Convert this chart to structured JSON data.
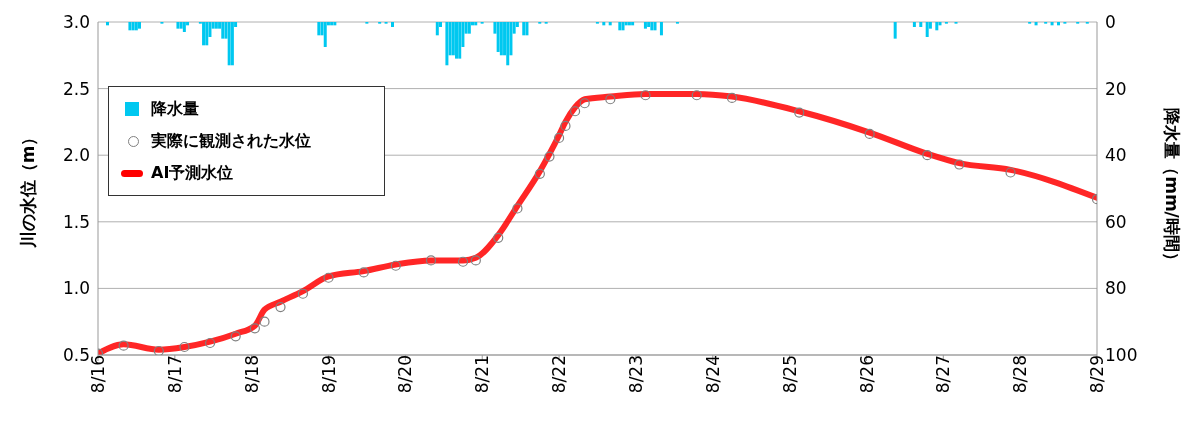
{
  "chart_data": {
    "type": "line",
    "ylabel": "川の水位（m）",
    "y2label": "降水量（mm/時間）",
    "xlim": [
      "--08-16",
      "--08-29"
    ],
    "xticks": [
      {
        "value": "--08-16",
        "label": "8/16"
      },
      {
        "value": "--08-17",
        "label": "8/17"
      },
      {
        "value": "--08-18",
        "label": "8/18"
      },
      {
        "value": "--08-19",
        "label": "8/19"
      },
      {
        "value": "--08-20",
        "label": "8/20"
      },
      {
        "value": "--08-21",
        "label": "8/21"
      },
      {
        "value": "--08-22",
        "label": "8/22"
      },
      {
        "value": "--08-23",
        "label": "8/23"
      },
      {
        "value": "--08-24",
        "label": "8/24"
      },
      {
        "value": "--08-25",
        "label": "8/25"
      },
      {
        "value": "--08-26",
        "label": "8/26"
      },
      {
        "value": "--08-27",
        "label": "8/27"
      },
      {
        "value": "--08-28",
        "label": "8/28"
      },
      {
        "value": "--08-29",
        "label": "8/29"
      }
    ],
    "ylim": [
      0.5,
      3.0
    ],
    "yticks": [
      {
        "value": 0.5,
        "label": "0.5"
      },
      {
        "value": 1.0,
        "label": "1.0"
      },
      {
        "value": 1.5,
        "label": "1.5"
      },
      {
        "value": 2.0,
        "label": "2.0"
      },
      {
        "value": 2.5,
        "label": "2.5"
      },
      {
        "value": 3.0,
        "label": "3.0"
      }
    ],
    "y2lim": [
      100,
      0
    ],
    "y2ticks": [
      0,
      20,
      40,
      60,
      80,
      100
    ],
    "grid": "y",
    "legend": "top left",
    "x": [
      "--08-16T00:00",
      "--08-16T08:00",
      "--08-16T19:00",
      "--08-17T03:00",
      "--08-17T11:00",
      "--08-17T19:00",
      "--08-18T01:00",
      "--08-18T04:00",
      "--08-18T09:00",
      "--08-18T16:00",
      "--08-19T00:00",
      "--08-19T11:00",
      "--08-19T21:00",
      "--08-20T08:00",
      "--08-20T18:00",
      "--08-20T22:00",
      "--08-21T05:00",
      "--08-21T11:00",
      "--08-21T18:00",
      "--08-21T21:00",
      "--08-22T00:00",
      "--08-22T02:00",
      "--08-22T05:00",
      "--08-22T08:00",
      "--08-22T16:00",
      "--08-23T03:00",
      "--08-23T19:00",
      "--08-24T06:00",
      "--08-25T03:00",
      "--08-26T01:00",
      "--08-26T19:00",
      "--08-27T05:00",
      "--08-27T21:00",
      "--08-29T00:00"
    ],
    "series": [
      {
        "name": "降水量",
        "type": "bar",
        "axis": "y2",
        "color": "#00c8f0",
        "x": [
          "--08-16T03:00",
          "--08-16T10:00",
          "--08-16T11:00",
          "--08-16T12:00",
          "--08-16T13:00",
          "--08-16T20:00",
          "--08-17T01:00",
          "--08-17T02:00",
          "--08-17T03:00",
          "--08-17T04:00",
          "--08-17T08:00",
          "--08-17T09:00",
          "--08-17T10:00",
          "--08-17T11:00",
          "--08-17T12:00",
          "--08-17T13:00",
          "--08-17T14:00",
          "--08-17T15:00",
          "--08-17T16:00",
          "--08-17T17:00",
          "--08-17T18:00",
          "--08-17T19:00",
          "--08-18T21:00",
          "--08-18T22:00",
          "--08-18T23:00",
          "--08-19T00:00",
          "--08-19T01:00",
          "--08-19T02:00",
          "--08-19T12:00",
          "--08-19T16:00",
          "--08-19T18:00",
          "--08-19T20:00",
          "--08-20T10:00",
          "--08-20T11:00",
          "--08-20T13:00",
          "--08-20T14:00",
          "--08-20T15:00",
          "--08-20T16:00",
          "--08-20T17:00",
          "--08-20T18:00",
          "--08-20T19:00",
          "--08-20T20:00",
          "--08-20T21:00",
          "--08-20T22:00",
          "--08-21T00:00",
          "--08-21T04:00",
          "--08-21T05:00",
          "--08-21T06:00",
          "--08-21T07:00",
          "--08-21T08:00",
          "--08-21T09:00",
          "--08-21T10:00",
          "--08-21T11:00",
          "--08-21T13:00",
          "--08-21T14:00",
          "--08-21T18:00",
          "--08-21T20:00",
          "--08-22T12:00",
          "--08-22T14:00",
          "--08-22T16:00",
          "--08-22T19:00",
          "--08-22T20:00",
          "--08-22T21:00",
          "--08-22T22:00",
          "--08-22T23:00",
          "--08-23T03:00",
          "--08-23T04:00",
          "--08-23T05:00",
          "--08-23T06:00",
          "--08-23T08:00",
          "--08-23T13:00",
          "--08-26T09:00",
          "--08-26T15:00",
          "--08-26T17:00",
          "--08-26T19:00",
          "--08-26T20:00",
          "--08-26T22:00",
          "--08-26T23:00",
          "--08-27T01:00",
          "--08-27T04:00",
          "--08-28T03:00",
          "--08-28T05:00",
          "--08-28T08:00",
          "--08-28T10:00",
          "--08-28T12:00",
          "--08-28T14:00",
          "--08-28T18:00",
          "--08-28T21:00"
        ],
        "values": [
          1,
          2.5,
          2.5,
          2.5,
          2,
          0.5,
          2,
          2,
          3,
          1,
          0.5,
          7,
          7,
          4.5,
          2,
          2,
          2,
          5,
          5,
          13,
          13,
          1.5,
          4,
          4,
          7.5,
          1,
          1,
          1,
          0.5,
          0.5,
          0.5,
          1.5,
          4,
          1.5,
          13,
          10,
          10,
          11,
          11,
          7.5,
          3.5,
          3.5,
          1,
          1,
          0.5,
          3.5,
          9,
          10,
          10,
          13,
          10,
          3.5,
          1.5,
          4,
          4,
          0.5,
          0.5,
          0.5,
          1,
          1,
          2.5,
          2.5,
          1,
          1,
          1,
          2,
          1.5,
          2.5,
          2.5,
          4,
          0.5,
          5,
          1.5,
          1.5,
          4.5,
          2,
          2.5,
          1,
          0.5,
          0.5,
          0.5,
          1,
          0.5,
          1,
          1,
          0.5,
          0.5,
          0.5
        ]
      },
      {
        "name": "実際に観測された水位",
        "type": "scatter",
        "marker": "circle",
        "color": "#808080",
        "values": [
          0.51,
          0.57,
          0.53,
          0.56,
          0.59,
          0.64,
          0.7,
          0.75,
          0.86,
          0.96,
          1.08,
          1.12,
          1.17,
          1.21,
          1.2,
          1.21,
          1.38,
          1.6,
          1.86,
          1.99,
          2.13,
          2.22,
          2.33,
          2.39,
          2.42,
          2.45,
          2.45,
          2.43,
          2.32,
          2.16,
          2.0,
          1.93,
          1.87,
          1.67
        ]
      },
      {
        "name": "AI予測水位",
        "marker": "none",
        "line_style": "solid",
        "color": "#ff0000",
        "values": [
          0.51,
          0.58,
          0.54,
          0.56,
          0.6,
          0.66,
          0.72,
          0.84,
          0.9,
          0.98,
          1.09,
          1.13,
          1.18,
          1.21,
          1.21,
          1.23,
          1.4,
          1.62,
          1.88,
          2.01,
          2.15,
          2.25,
          2.36,
          2.42,
          2.44,
          2.46,
          2.46,
          2.44,
          2.33,
          2.17,
          2.01,
          1.94,
          1.89,
          1.68
        ]
      }
    ]
  }
}
